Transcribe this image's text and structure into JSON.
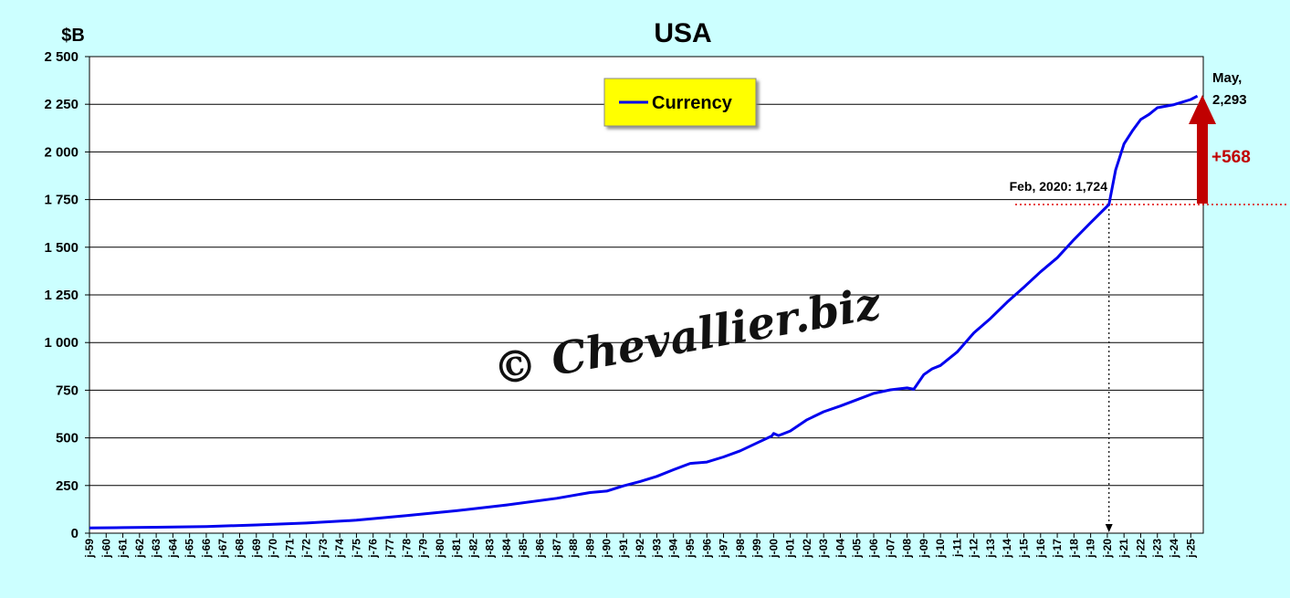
{
  "chart_data": {
    "type": "line",
    "title": "USA",
    "ylabel": "$B",
    "ylim": [
      0,
      2500
    ],
    "yticks": [
      0,
      250,
      500,
      750,
      1000,
      1250,
      1500,
      1750,
      2000,
      2250,
      2500
    ],
    "ytick_labels": [
      "0",
      "250",
      "500",
      "750",
      "1 000",
      "1 250",
      "1 500",
      "1 750",
      "2 000",
      "2 250",
      "2 500"
    ],
    "xlim": [
      1959.0,
      2025.75
    ],
    "xtick_labels": [
      "j-59",
      "j-60",
      "j-61",
      "j-62",
      "j-63",
      "j-64",
      "j-65",
      "j-66",
      "j-67",
      "j-68",
      "j-69",
      "j-70",
      "j-71",
      "j-72",
      "j-73",
      "j-74",
      "j-75",
      "j-76",
      "j-77",
      "j-78",
      "j-79",
      "j-80",
      "j-81",
      "j-82",
      "j-83",
      "j-84",
      "j-85",
      "j-86",
      "j-87",
      "j-88",
      "j-89",
      "j-90",
      "j-91",
      "j-92",
      "j-93",
      "j-94",
      "j-95",
      "j-96",
      "j-97",
      "j-98",
      "j-99",
      "j-00",
      "j-01",
      "j-02",
      "j-03",
      "j-04",
      "j-05",
      "j-06",
      "j-07",
      "j-08",
      "j-09",
      "j-10",
      "j-11",
      "j-12",
      "j-13",
      "j-14",
      "j-15",
      "j-16",
      "j-17",
      "j-18",
      "j-19",
      "j-20",
      "j-21",
      "j-22",
      "j-23",
      "j-24",
      "j-25"
    ],
    "grid": true,
    "legend_position": "top-center",
    "series": [
      {
        "name": "Currency",
        "color": "#0000ee",
        "x": [
          1959.0,
          1961.0,
          1963.0,
          1966.0,
          1969.0,
          1972.0,
          1975.0,
          1978.0,
          1981.0,
          1984.0,
          1987.0,
          1989.0,
          1990.0,
          1991.0,
          1992.0,
          1993.0,
          1994.0,
          1995.0,
          1996.0,
          1997.0,
          1998.0,
          1999.0,
          1999.9,
          2000.0,
          2000.3,
          2001.0,
          2002.0,
          2003.0,
          2004.0,
          2005.0,
          2006.0,
          2007.0,
          2008.0,
          2008.4,
          2009.0,
          2009.5,
          2010.0,
          2011.0,
          2012.0,
          2013.0,
          2014.0,
          2015.0,
          2016.0,
          2017.0,
          2018.0,
          2019.0,
          2020.1,
          2020.5,
          2021.0,
          2021.5,
          2022.0,
          2022.5,
          2023.0,
          2024.0,
          2025.0,
          2025.4
        ],
        "y": [
          28,
          29,
          31,
          35,
          43,
          53,
          68,
          92,
          118,
          148,
          183,
          213,
          221,
          248,
          271,
          298,
          333,
          366,
          373,
          400,
          432,
          473,
          510,
          523,
          512,
          536,
          595,
          637,
          667,
          700,
          733,
          752,
          762,
          755,
          832,
          862,
          880,
          950,
          1051,
          1127,
          1212,
          1290,
          1371,
          1445,
          1540,
          1629,
          1724,
          1905,
          2042,
          2110,
          2170,
          2197,
          2232,
          2248,
          2275,
          2293
        ]
      }
    ],
    "annotations": {
      "feb2020": "Feb, 2020: 1,724",
      "may_line1": "May,",
      "may_line2": "2,293",
      "increase": "+568",
      "increase_color": "#c00000",
      "ref_line_value": 1724,
      "ref_line_x": 2020.1,
      "end_value": 2293
    },
    "watermark": "© Chevallier.biz"
  },
  "legend": {
    "label": "Currency",
    "background": "#ffff00",
    "line_color": "#0000ee"
  },
  "colors": {
    "background": "#ccffff",
    "plot_background": "#ffffff",
    "gridline": "#000000",
    "series": "#0000ee",
    "arrow": "#c00000"
  }
}
